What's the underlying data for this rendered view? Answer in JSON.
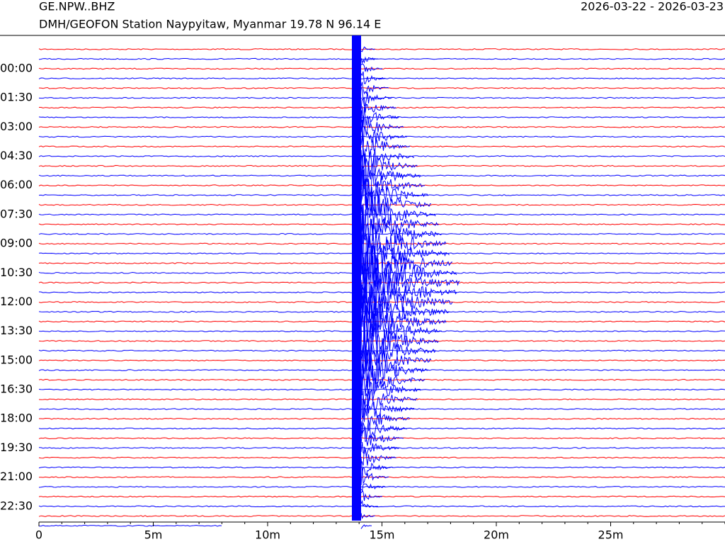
{
  "chart_data": {
    "type": "helicorder",
    "title": "GE.NPW..BHZ",
    "date_range": "2026-03-22 - 2026-03-23",
    "subtitle": "DMH/GEOFON Station Naypyitaw, Myanmar  19.78 N 96.14 E",
    "y_labels": [
      "00:00",
      "01:30",
      "03:00",
      "04:30",
      "06:00",
      "07:30",
      "09:00",
      "10:30",
      "12:00",
      "13:30",
      "15:00",
      "16:30",
      "18:00",
      "19:30",
      "21:00",
      "22:30"
    ],
    "xlim": [
      0,
      30
    ],
    "xticks": [
      0,
      {
        "value": 5,
        "label": "5m"
      },
      {
        "value": 10,
        "label": "10m"
      },
      {
        "value": 15,
        "label": "15m"
      },
      {
        "value": 20,
        "label": "20m"
      },
      {
        "value": 25,
        "label": "25m"
      }
    ],
    "colors": [
      "#ff0000",
      "#0000ff"
    ]
  }
}
